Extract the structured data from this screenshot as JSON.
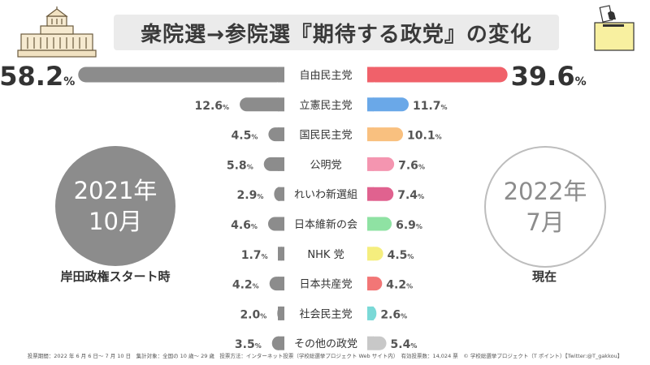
{
  "title": "衆院選→参院選『期待する政党』の変化",
  "left_period": {
    "line1": "2021年",
    "line2": "10月",
    "label": "岸田政権スタート時"
  },
  "right_period": {
    "line1": "2022年",
    "line2": "7月",
    "label": "現在"
  },
  "footnote": "投票期間：2022 年 6 月 6 日〜 7 月 10 日　集計対象：全国の 10 歳〜 29 歳　投票方法：インターネット投票（学校総選挙プロジェクト Web サイト内）　有効投票数：14,024 票　© 学校総選挙プロジェクト（T ポイント）【Twitter:@T_gakkou】",
  "chart_data": {
    "type": "bar",
    "unit": "%",
    "categories": [
      "自由民主党",
      "立憲民主党",
      "国民民主党",
      "公明党",
      "れいわ新選組",
      "日本維新の会",
      "NHK 党",
      "日本共産党",
      "社会民主党",
      "その他の政党"
    ],
    "series": [
      {
        "name": "2021年10月",
        "values": [
          58.2,
          12.6,
          4.5,
          5.8,
          2.9,
          4.6,
          1.7,
          4.2,
          2.0,
          3.5
        ],
        "color": "#8c8c8c"
      },
      {
        "name": "2022年7月",
        "values": [
          39.6,
          11.7,
          10.1,
          7.6,
          7.4,
          6.9,
          4.5,
          4.2,
          2.6,
          5.4
        ],
        "colors": [
          "#f0616a",
          "#6aa8e8",
          "#f9c07f",
          "#f495b0",
          "#e0628f",
          "#8fe2a3",
          "#f5ee7e",
          "#f27676",
          "#7ad9d7",
          "#c8c8c8"
        ]
      }
    ],
    "legend": "none",
    "grid": false
  }
}
